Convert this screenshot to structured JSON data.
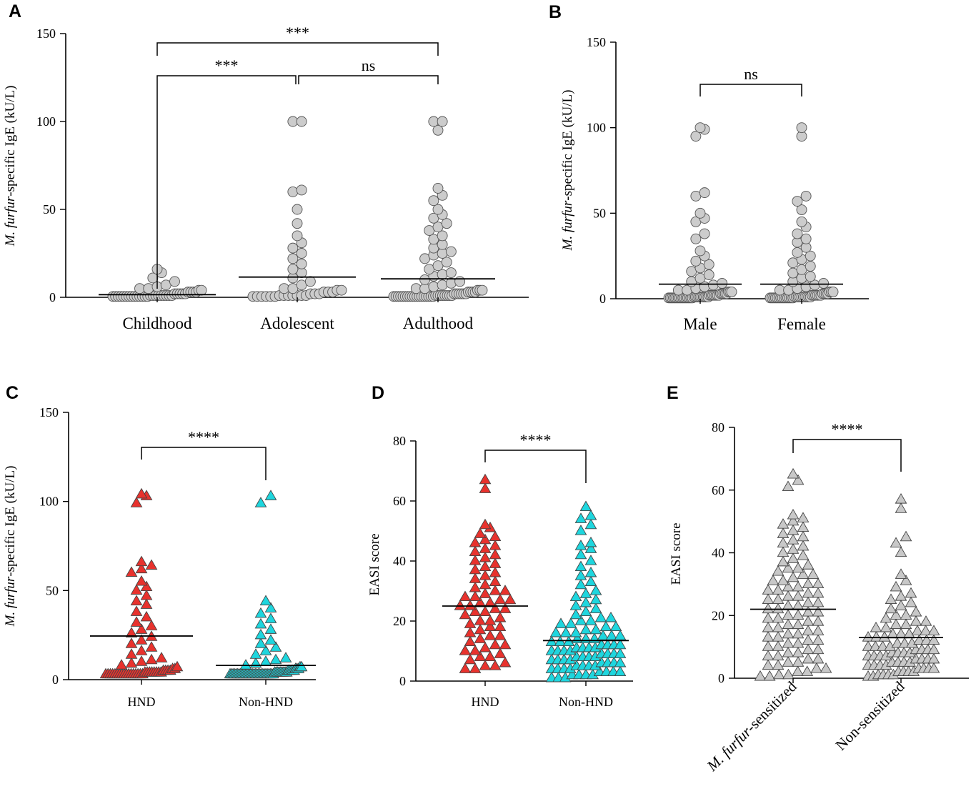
{
  "chart_data": [
    {
      "panel": "A",
      "type": "scatter",
      "title": "",
      "ylabel": {
        "italic": "M. furfur",
        "rest": "-specific IgE (kU/L)"
      },
      "ylim": [
        0,
        150
      ],
      "yticks": [
        0,
        50,
        100,
        150
      ],
      "marker": "circle",
      "color": "#cccccc",
      "categories": [
        "Childhood",
        "Adolescent",
        "Adulthood"
      ],
      "series": [
        {
          "name": "Childhood",
          "mean": 1.5,
          "values": [
            16,
            14,
            11,
            9,
            7,
            6,
            5,
            5,
            4,
            4,
            3,
            3,
            3,
            3,
            2,
            2,
            2,
            2,
            2,
            1,
            1,
            1,
            1,
            1,
            1,
            1,
            1,
            1,
            0.5,
            0.5,
            0.5,
            0.5,
            0.5,
            0.5,
            0.5,
            0.5,
            0.5,
            0.5,
            0.5,
            0.5,
            0.5,
            0.5
          ]
        },
        {
          "name": "Adolescent",
          "mean": 11.5,
          "values": [
            100,
            100,
            61,
            60,
            50,
            42,
            35,
            31,
            28,
            25,
            22,
            19,
            16,
            14,
            11,
            9,
            7,
            5,
            5,
            4,
            4,
            3,
            3,
            3,
            2,
            2,
            2,
            1,
            1,
            1,
            1,
            1,
            1,
            1,
            0.5,
            0.5,
            0.5,
            0.5,
            0.5,
            0.5
          ]
        },
        {
          "name": "Adulthood",
          "mean": 10.5,
          "values": [
            100,
            100,
            95,
            62,
            58,
            55,
            50,
            47,
            45,
            42,
            40,
            38,
            35,
            33,
            30,
            28,
            26,
            25,
            24,
            22,
            20,
            18,
            16,
            14,
            13,
            12,
            10,
            9,
            8,
            7,
            6,
            5,
            5,
            4,
            4,
            4,
            3,
            3,
            3,
            3,
            2,
            2,
            2,
            2,
            2,
            2,
            1,
            1,
            1,
            1,
            1,
            1,
            1,
            1,
            0.5,
            0.5,
            0.5,
            0.5,
            0.5,
            0.5,
            0.5,
            0.5,
            0.5,
            0.5,
            0.5,
            0.5,
            0.5,
            0.5,
            0.5,
            0.5,
            0.5,
            0.5
          ]
        }
      ],
      "comparisons": [
        {
          "groups": [
            0,
            2
          ],
          "label": "***"
        },
        {
          "groups": [
            0,
            1
          ],
          "label": "***"
        },
        {
          "groups": [
            1,
            2
          ],
          "label": "ns"
        }
      ]
    },
    {
      "panel": "B",
      "type": "scatter",
      "ylabel": {
        "italic": "M. furfur",
        "rest": "-specific IgE (kU/L)"
      },
      "ylim": [
        0,
        150
      ],
      "yticks": [
        0,
        50,
        100,
        150
      ],
      "marker": "circle",
      "color": "#cccccc",
      "categories": [
        "Male",
        "Female"
      ],
      "series": [
        {
          "name": "Male",
          "mean": 8.5,
          "values": [
            100,
            99,
            95,
            62,
            60,
            50,
            47,
            45,
            38,
            35,
            28,
            25,
            22,
            20,
            18,
            16,
            14,
            12,
            10,
            9,
            8,
            7,
            6,
            5,
            5,
            4,
            4,
            4,
            3,
            3,
            3,
            3,
            3,
            2,
            2,
            2,
            2,
            2,
            2,
            2,
            1,
            1,
            1,
            1,
            1,
            1,
            1,
            1,
            1,
            1,
            0.5,
            0.5,
            0.5,
            0.5,
            0.5,
            0.5,
            0.5,
            0.5,
            0.5,
            0.5,
            0.5,
            0.5,
            0.5,
            0.5,
            0.5,
            0.5
          ]
        },
        {
          "name": "Female",
          "mean": 8.5,
          "values": [
            100,
            95,
            60,
            57,
            52,
            45,
            42,
            38,
            35,
            33,
            30,
            27,
            25,
            23,
            21,
            19,
            17,
            15,
            13,
            12,
            10,
            9,
            8,
            7,
            6,
            5,
            5,
            4,
            4,
            4,
            3,
            3,
            3,
            3,
            2,
            2,
            2,
            2,
            2,
            2,
            1,
            1,
            1,
            1,
            1,
            1,
            1,
            1,
            1,
            1,
            0.5,
            0.5,
            0.5,
            0.5,
            0.5,
            0.5,
            0.5,
            0.5,
            0.5,
            0.5,
            0.5,
            0.5,
            0.5,
            0.5
          ]
        }
      ],
      "comparisons": [
        {
          "groups": [
            0,
            1
          ],
          "label": "ns"
        }
      ]
    },
    {
      "panel": "C",
      "type": "scatter",
      "ylabel": {
        "italic": "M. furfur",
        "rest": "-specific IgE (kU/L)"
      },
      "ylim": [
        0,
        150
      ],
      "yticks": [
        0,
        50,
        100,
        150
      ],
      "marker": "triangle",
      "categories": [
        "HND",
        "Non-HND"
      ],
      "series": [
        {
          "name": "HND",
          "color": "#e8322d",
          "mean": 24.5,
          "values": [
            104,
            103,
            99,
            66,
            64,
            62,
            60,
            55,
            52,
            50,
            47,
            44,
            42,
            38,
            35,
            32,
            30,
            28,
            26,
            24,
            22,
            20,
            18,
            16,
            14,
            12,
            11,
            10,
            9,
            8,
            7,
            6,
            6,
            5,
            5,
            5,
            5,
            4,
            4,
            4,
            4,
            4,
            4,
            4,
            4,
            3,
            3,
            3,
            3,
            3,
            3,
            3,
            3,
            3,
            3,
            3,
            3,
            3,
            3,
            3,
            3,
            3
          ]
        },
        {
          "name": "Non-HND",
          "color": "#1ed6de",
          "mean": 8,
          "values": [
            103,
            99,
            44,
            40,
            37,
            34,
            31,
            28,
            25,
            22,
            20,
            18,
            16,
            14,
            12,
            11,
            10,
            9,
            8,
            7,
            7,
            6,
            6,
            6,
            5,
            5,
            5,
            5,
            5,
            4,
            4,
            4,
            4,
            4,
            4,
            4,
            4,
            4,
            3,
            3,
            3,
            3,
            3,
            3,
            3,
            3,
            3,
            3,
            3,
            3,
            3,
            3,
            3,
            3,
            3,
            3,
            3,
            3,
            3,
            3,
            3,
            3,
            3,
            3,
            3,
            3,
            3,
            3
          ]
        }
      ],
      "comparisons": [
        {
          "groups": [
            0,
            1
          ],
          "label": "****"
        }
      ]
    },
    {
      "panel": "D",
      "type": "scatter",
      "ylabel": {
        "italic": "",
        "rest": "EASI score"
      },
      "ylim": [
        0,
        80
      ],
      "yticks": [
        0,
        20,
        40,
        60,
        80
      ],
      "marker": "triangle",
      "categories": [
        "HND",
        "Non-HND"
      ],
      "series": [
        {
          "name": "HND",
          "color": "#e8322d",
          "mean": 25,
          "values": [
            67,
            64,
            52,
            51,
            49,
            48,
            47,
            46,
            45,
            44,
            43,
            42,
            41,
            40,
            39,
            38,
            37,
            36,
            35,
            34,
            33,
            32,
            31,
            30,
            30,
            29,
            28,
            28,
            27,
            27,
            26,
            26,
            25,
            25,
            24,
            24,
            23,
            23,
            22,
            21,
            20,
            20,
            19,
            18,
            18,
            17,
            16,
            15,
            15,
            14,
            13,
            12,
            12,
            11,
            10,
            10,
            9,
            8,
            8,
            7,
            6,
            5,
            5,
            4,
            4
          ]
        },
        {
          "name": "Non-HND",
          "color": "#1ed6de",
          "mean": 13.5,
          "values": [
            58,
            55,
            54,
            52,
            50,
            46,
            45,
            44,
            42,
            40,
            38,
            36,
            35,
            33,
            32,
            30,
            29,
            28,
            27,
            26,
            25,
            24,
            23,
            22,
            21,
            21,
            20,
            20,
            19,
            19,
            18,
            18,
            17,
            17,
            16,
            16,
            16,
            15,
            15,
            15,
            14,
            14,
            14,
            13,
            13,
            13,
            12,
            12,
            12,
            12,
            11,
            11,
            11,
            11,
            10,
            10,
            10,
            10,
            9,
            9,
            9,
            9,
            8,
            8,
            8,
            8,
            7,
            7,
            7,
            7,
            6,
            6,
            6,
            6,
            5,
            5,
            5,
            5,
            4,
            4,
            4,
            4,
            3,
            3,
            3,
            3,
            2,
            2,
            2,
            2,
            1,
            1,
            1
          ]
        }
      ],
      "comparisons": [
        {
          "groups": [
            0,
            1
          ],
          "label": "****"
        }
      ]
    },
    {
      "panel": "E",
      "type": "scatter",
      "ylabel": {
        "italic": "",
        "rest": "EASI score"
      },
      "ylim": [
        0,
        80
      ],
      "yticks": [
        0,
        20,
        40,
        60,
        80
      ],
      "marker": "triangle",
      "color": "#c8c8c8",
      "categories": [
        {
          "italic": "M. furfur",
          "rest": "-sensitized"
        },
        {
          "italic": "",
          "rest": "Non-sensitized"
        }
      ],
      "series": [
        {
          "name": "M. furfur-sensitized",
          "mean": 22,
          "values": [
            65,
            63,
            61,
            52,
            51,
            50,
            49,
            48,
            47,
            46,
            45,
            44,
            43,
            42,
            41,
            40,
            39,
            38,
            37,
            36,
            35,
            35,
            34,
            33,
            33,
            32,
            31,
            31,
            30,
            30,
            29,
            29,
            28,
            28,
            27,
            27,
            26,
            26,
            25,
            25,
            24,
            24,
            23,
            23,
            22,
            22,
            21,
            21,
            20,
            20,
            19,
            19,
            18,
            18,
            17,
            17,
            16,
            16,
            15,
            15,
            14,
            14,
            13,
            13,
            12,
            12,
            11,
            11,
            10,
            10,
            9,
            9,
            8,
            8,
            7,
            7,
            6,
            6,
            5,
            5,
            4,
            4,
            3,
            3,
            2,
            2,
            1,
            1,
            0.5,
            0.5
          ]
        },
        {
          "name": "Non-sensitized",
          "mean": 13,
          "values": [
            57,
            54,
            45,
            43,
            40,
            33,
            31,
            29,
            27,
            26,
            25,
            24,
            23,
            22,
            21,
            20,
            20,
            19,
            18,
            18,
            17,
            17,
            16,
            16,
            15,
            15,
            15,
            14,
            14,
            14,
            13,
            13,
            13,
            12,
            12,
            12,
            11,
            11,
            11,
            10,
            10,
            10,
            10,
            9,
            9,
            9,
            9,
            8,
            8,
            8,
            8,
            7,
            7,
            7,
            7,
            6,
            6,
            6,
            6,
            5,
            5,
            5,
            5,
            4,
            4,
            4,
            4,
            3,
            3,
            3,
            3,
            2,
            2,
            2,
            2,
            1,
            1,
            1,
            1,
            0.5,
            0.5
          ]
        }
      ],
      "comparisons": [
        {
          "groups": [
            0,
            1
          ],
          "label": "****"
        }
      ]
    }
  ]
}
